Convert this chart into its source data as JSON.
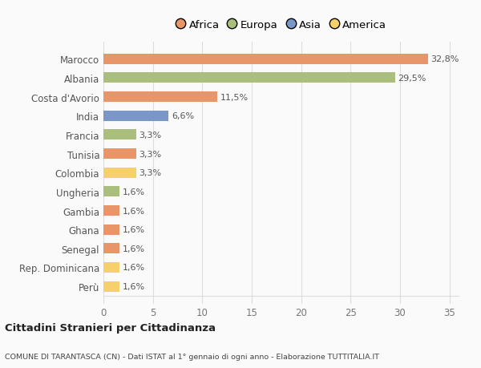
{
  "categories": [
    "Perù",
    "Rep. Dominicana",
    "Senegal",
    "Ghana",
    "Gambia",
    "Ungheria",
    "Colombia",
    "Tunisia",
    "Francia",
    "India",
    "Costa d'Avorio",
    "Albania",
    "Marocco"
  ],
  "values": [
    1.6,
    1.6,
    1.6,
    1.6,
    1.6,
    1.6,
    3.3,
    3.3,
    3.3,
    6.6,
    11.5,
    29.5,
    32.8
  ],
  "colors": [
    "#F5D06B",
    "#F5D06B",
    "#E8956A",
    "#E8956A",
    "#E8956A",
    "#AABF7E",
    "#F5D06B",
    "#E8956A",
    "#AABF7E",
    "#7B96C9",
    "#E8956A",
    "#AABF7E",
    "#E8956A"
  ],
  "labels": [
    "1,6%",
    "1,6%",
    "1,6%",
    "1,6%",
    "1,6%",
    "1,6%",
    "3,3%",
    "3,3%",
    "3,3%",
    "6,6%",
    "11,5%",
    "29,5%",
    "32,8%"
  ],
  "legend": {
    "Africa": "#E8956A",
    "Europa": "#AABF7E",
    "Asia": "#7B96C9",
    "America": "#F5D06B"
  },
  "title1": "Cittadini Stranieri per Cittadinanza",
  "title2": "COMUNE DI TARANTASCA (CN) - Dati ISTAT al 1° gennaio di ogni anno - Elaborazione TUTTITALIA.IT",
  "xlim": [
    0,
    36
  ],
  "xticks": [
    0,
    5,
    10,
    15,
    20,
    25,
    30,
    35
  ],
  "bg_color": "#FAFAFA",
  "bar_height": 0.55,
  "grid_color": "#DDDDDD",
  "label_color": "#555555",
  "ytick_color": "#555555"
}
